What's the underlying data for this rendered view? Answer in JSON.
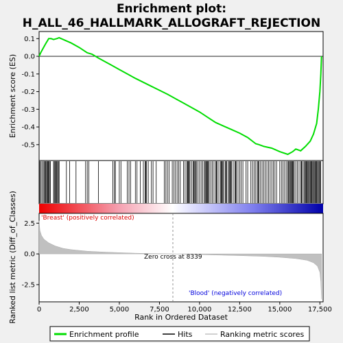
{
  "chart_data": {
    "type": "line",
    "title_line1": "Enrichment plot:",
    "title_line2": "H_ALL_46_HALLMARK_ALLOGRAFT_REJECTION",
    "xlabel": "Rank in Ordered Dataset",
    "ylabel_top": "Enrichment score (ES)",
    "ylabel_bottom": "Ranked list metric (Diff_of_Classes)",
    "xlim": [
      0,
      17700
    ],
    "x_ticks": [
      0,
      2500,
      5000,
      7500,
      10000,
      12500,
      15000,
      17500
    ],
    "x_tick_labels": [
      "0",
      "2,500",
      "5,000",
      "7,500",
      "10,000",
      "12,500",
      "15,000",
      "17,500"
    ],
    "es_ylim": [
      -0.59,
      0.14
    ],
    "es_ticks": [
      0.1,
      0.0,
      -0.1,
      -0.2,
      -0.3,
      -0.4,
      -0.5
    ],
    "es_tick_labels": [
      "0.1",
      "0.0",
      "-0.1",
      "-0.2",
      "-0.3",
      "-0.4",
      "-0.5"
    ],
    "metric_ylim": [
      -3.9,
      3.3
    ],
    "metric_ticks": [
      2.5,
      0.0,
      -2.5
    ],
    "metric_tick_labels": [
      "2.5",
      "0.0",
      "-2.5"
    ],
    "es_curve": [
      [
        0,
        0.0
      ],
      [
        100,
        0.02
      ],
      [
        250,
        0.045
      ],
      [
        400,
        0.07
      ],
      [
        500,
        0.085
      ],
      [
        600,
        0.1
      ],
      [
        750,
        0.1
      ],
      [
        900,
        0.095
      ],
      [
        1100,
        0.1
      ],
      [
        1250,
        0.105
      ],
      [
        1500,
        0.095
      ],
      [
        2000,
        0.075
      ],
      [
        2500,
        0.05
      ],
      [
        3000,
        0.02
      ],
      [
        3300,
        0.012
      ],
      [
        3700,
        -0.01
      ],
      [
        4500,
        -0.05
      ],
      [
        5000,
        -0.075
      ],
      [
        5500,
        -0.1
      ],
      [
        6000,
        -0.125
      ],
      [
        7000,
        -0.17
      ],
      [
        8000,
        -0.215
      ],
      [
        9000,
        -0.265
      ],
      [
        10000,
        -0.315
      ],
      [
        10500,
        -0.345
      ],
      [
        11000,
        -0.375
      ],
      [
        11500,
        -0.395
      ],
      [
        12000,
        -0.415
      ],
      [
        12500,
        -0.435
      ],
      [
        13000,
        -0.46
      ],
      [
        13500,
        -0.495
      ],
      [
        13700,
        -0.5
      ],
      [
        14000,
        -0.51
      ],
      [
        14500,
        -0.52
      ],
      [
        15000,
        -0.54
      ],
      [
        15500,
        -0.555
      ],
      [
        15800,
        -0.54
      ],
      [
        16000,
        -0.525
      ],
      [
        16300,
        -0.535
      ],
      [
        16600,
        -0.51
      ],
      [
        16900,
        -0.48
      ],
      [
        17100,
        -0.44
      ],
      [
        17300,
        -0.38
      ],
      [
        17400,
        -0.3
      ],
      [
        17500,
        -0.2
      ],
      [
        17560,
        -0.1
      ],
      [
        17600,
        0.0
      ]
    ],
    "hits": [
      40,
      110,
      180,
      260,
      330,
      380,
      420,
      470,
      520,
      560,
      600,
      650,
      700,
      900,
      950,
      1000,
      1060,
      1100,
      1150,
      1200,
      1250,
      1700,
      1900,
      2300,
      2900,
      3000,
      3100,
      3700,
      4600,
      4700,
      4750,
      5000,
      5100,
      5500,
      5600,
      5700,
      6000,
      6100,
      6300,
      6500,
      6600,
      6650,
      6700,
      6800,
      7000,
      7100,
      7300,
      7800,
      7900,
      8000,
      8100,
      8300,
      8400,
      8500,
      8600,
      8700,
      8800,
      9000,
      9100,
      9200,
      9250,
      9300,
      9350,
      9400,
      9500,
      9600,
      9650,
      9700,
      9750,
      9800,
      9900,
      10000,
      10100,
      10200,
      10300,
      10350,
      10400,
      10450,
      10500,
      10550,
      10600,
      10700,
      10800,
      10900,
      11000,
      11050,
      11100,
      11200,
      11300,
      11350,
      11400,
      11450,
      11500,
      11600,
      11650,
      11700,
      11800,
      11850,
      11900,
      11950,
      12000,
      12100,
      12200,
      12250,
      12300,
      12400,
      12500,
      12600,
      12700,
      12900,
      13000,
      13200,
      13300,
      13400,
      13500,
      13600,
      13650,
      13700,
      13800,
      13900,
      14000,
      14100,
      14200,
      14300,
      14400,
      14500,
      14600,
      14700,
      14800,
      15000,
      15100,
      15200,
      15300,
      15400,
      15500,
      15550,
      15600,
      15650,
      15700,
      15750,
      15800,
      15850,
      15900,
      16000,
      16100,
      16200,
      16300,
      16350,
      16400,
      16500,
      16550,
      16600,
      16650,
      16700,
      16750,
      16800,
      16850,
      16900,
      16950,
      17000,
      17050,
      17100,
      17150,
      17200,
      17250,
      17300,
      17350,
      17400,
      17450,
      17500,
      17550
    ],
    "metric_curve": [
      [
        0,
        2.7
      ],
      [
        50,
        1.9
      ],
      [
        150,
        1.5
      ],
      [
        300,
        1.2
      ],
      [
        600,
        0.9
      ],
      [
        1000,
        0.65
      ],
      [
        1500,
        0.45
      ],
      [
        2000,
        0.35
      ],
      [
        3000,
        0.22
      ],
      [
        4000,
        0.15
      ],
      [
        5000,
        0.1
      ],
      [
        6000,
        0.06
      ],
      [
        7000,
        0.03
      ],
      [
        8339,
        0.0
      ],
      [
        9500,
        -0.04
      ],
      [
        11000,
        -0.09
      ],
      [
        12500,
        -0.14
      ],
      [
        14000,
        -0.2
      ],
      [
        15000,
        -0.27
      ],
      [
        16000,
        -0.38
      ],
      [
        16700,
        -0.52
      ],
      [
        17100,
        -0.72
      ],
      [
        17350,
        -1.0
      ],
      [
        17500,
        -1.5
      ],
      [
        17560,
        -2.3
      ],
      [
        17600,
        -3.7
      ]
    ],
    "zero_cross": 8339,
    "zero_cross_label": "Zero cross at 8339",
    "pos_label": "'Breast' (positively correlated)",
    "neg_label": "'Blood' (negatively correlated)",
    "legend": [
      "Enrichment profile",
      "Hits",
      "Ranking metric scores"
    ],
    "colors": {
      "es_line": "#00dd00",
      "hits": "#000000",
      "metric_fill": "#c0c0c0",
      "pos_text": "#dd0000",
      "neg_text": "#0000dd",
      "zero_line": "#777777"
    }
  }
}
